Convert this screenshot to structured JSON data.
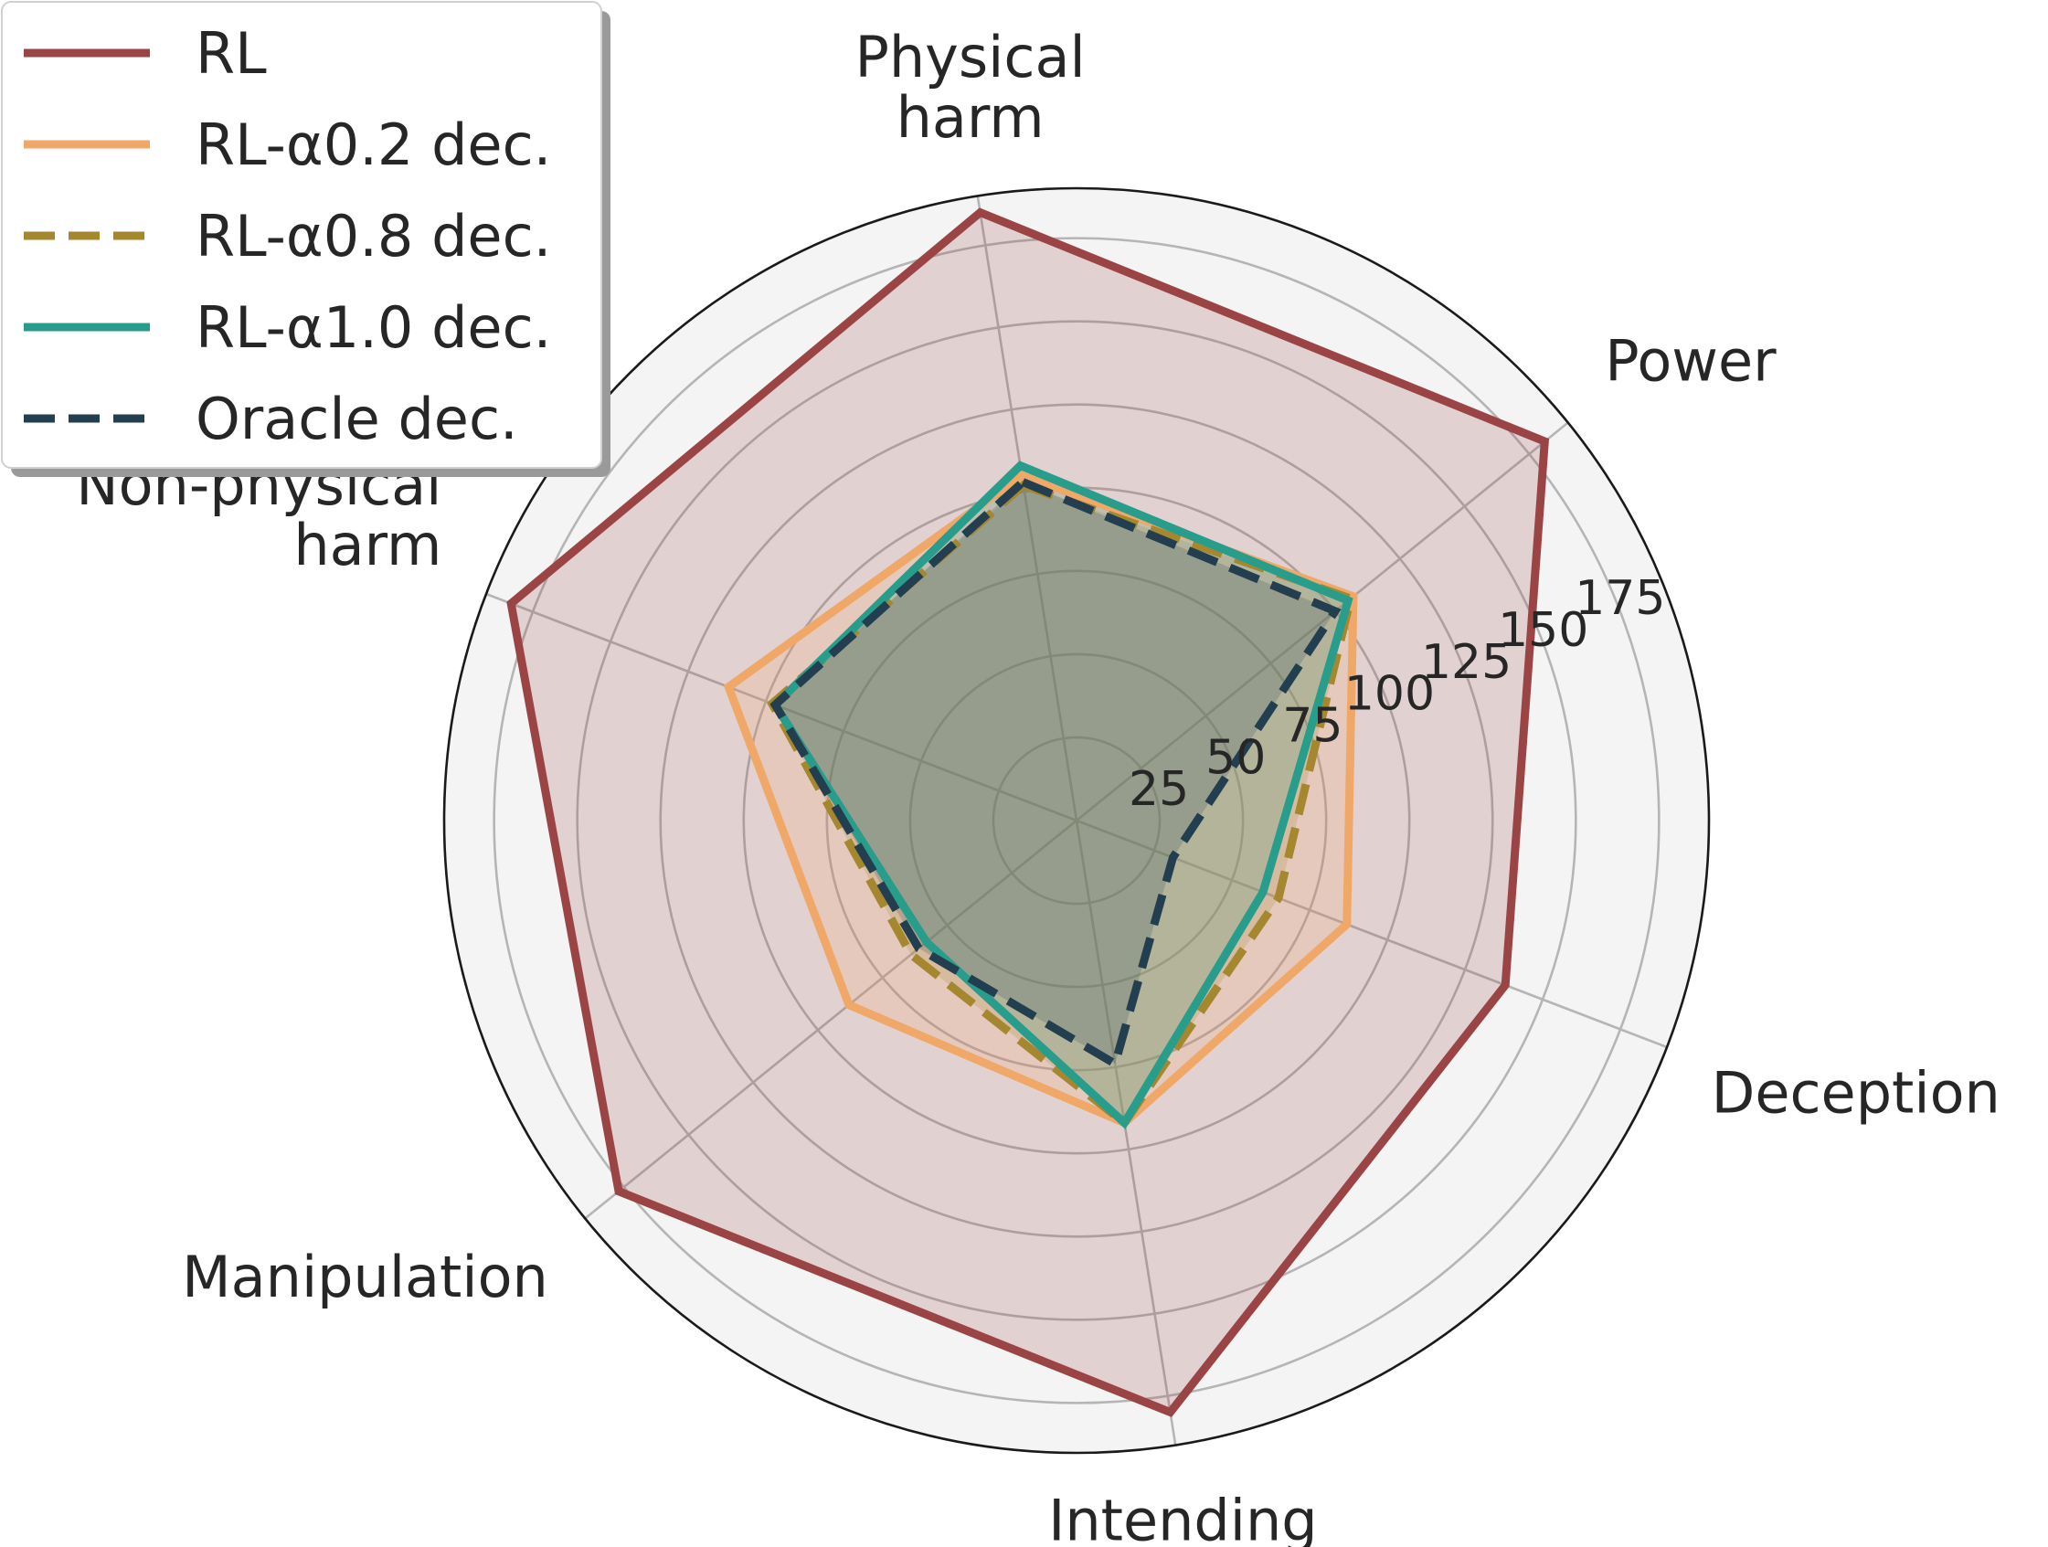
{
  "chart_data": {
    "type": "radar",
    "categories": [
      "Physical\nharm",
      "Power",
      "Deception",
      "Intending\nharm",
      "Manipulation",
      "Non-physical\nharm"
    ],
    "radial_ticks": [
      25,
      50,
      75,
      100,
      125,
      150,
      175
    ],
    "rlim": [
      0,
      190
    ],
    "grid": true,
    "legend_position": "top-left",
    "series": [
      {
        "name": "RL",
        "color": "#9b4446",
        "dashed": false,
        "fill": true,
        "values": [
          185,
          181,
          138,
          180,
          177,
          182
        ]
      },
      {
        "name": "RL-α0.2 dec.",
        "color": "#f0a868",
        "dashed": false,
        "fill": true,
        "values": [
          105,
          107,
          87,
          92,
          88,
          112
        ]
      },
      {
        "name": "RL-α0.8 dec.",
        "color": "#a4872e",
        "dashed": true,
        "fill": true,
        "values": [
          102,
          106,
          65,
          92,
          64,
          98
        ]
      },
      {
        "name": "RL-α1.0 dec.",
        "color": "#289d8c",
        "dashed": false,
        "fill": true,
        "values": [
          108,
          105,
          60,
          92,
          58,
          97
        ]
      },
      {
        "name": "Oracle dec.",
        "color": "#233f4f",
        "dashed": true,
        "fill": true,
        "values": [
          103,
          100,
          31,
          74,
          61,
          97
        ]
      }
    ]
  }
}
